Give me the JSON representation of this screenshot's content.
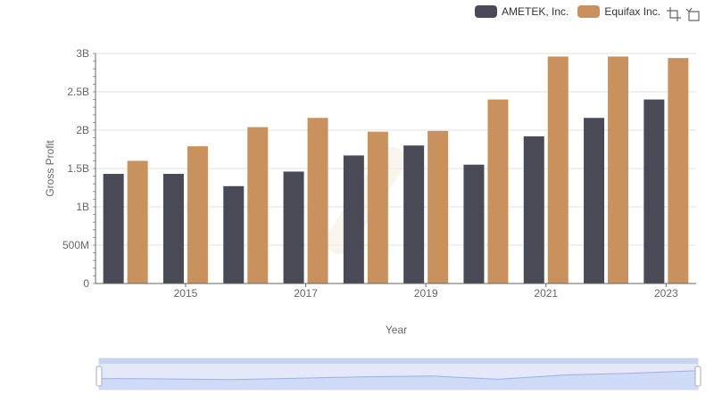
{
  "legend": {
    "items": [
      {
        "name": "AMETEK, Inc.",
        "color": "#4a4a56"
      },
      {
        "name": "Equifax Inc.",
        "color": "#c8915e"
      }
    ]
  },
  "toolbox": {
    "icons": [
      "zoom-icon",
      "restore-icon"
    ]
  },
  "chart_data": {
    "type": "bar",
    "xlabel": "Year",
    "ylabel": "Gross Profit",
    "categories": [
      "2014",
      "2015",
      "2016",
      "2017",
      "2018",
      "2019",
      "2020",
      "2021",
      "2022",
      "2023"
    ],
    "x_tick_labels": [
      "2015",
      "2017",
      "2019",
      "2021",
      "2023"
    ],
    "y_tick_labels": [
      "0",
      "500M",
      "1B",
      "1.5B",
      "2B",
      "2.5B",
      "3B"
    ],
    "ylim": [
      0,
      3000000000
    ],
    "series": [
      {
        "name": "AMETEK, Inc.",
        "color": "#4a4a56",
        "values": [
          1430000000,
          1430000000,
          1270000000,
          1460000000,
          1670000000,
          1800000000,
          1550000000,
          1920000000,
          2160000000,
          2400000000
        ]
      },
      {
        "name": "Equifax Inc.",
        "color": "#c8915e",
        "values": [
          1600000000,
          1790000000,
          2040000000,
          2160000000,
          1980000000,
          1990000000,
          2400000000,
          2960000000,
          2960000000,
          2940000000
        ]
      }
    ],
    "grid": true,
    "legend_position": "top-right",
    "datazoom_trend": [
      0.11,
      0.1,
      0.08,
      0.12,
      0.16,
      0.18,
      0.09,
      0.21,
      0.26,
      0.33
    ]
  }
}
